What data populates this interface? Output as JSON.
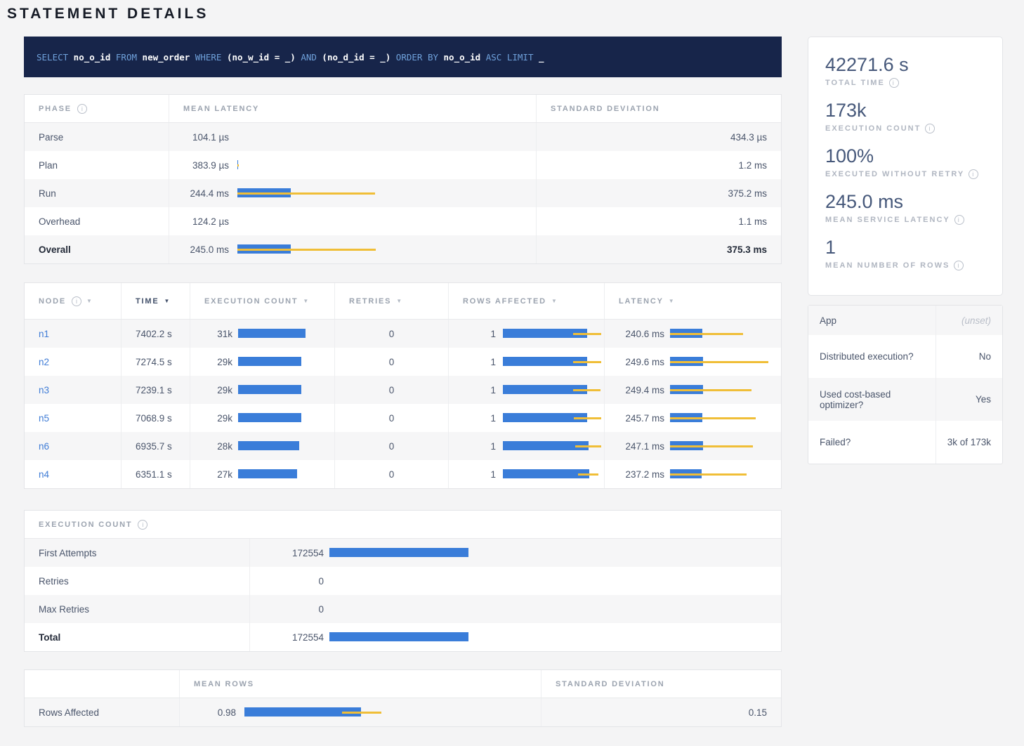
{
  "page": {
    "title": "STATEMENT DETAILS"
  },
  "colors": {
    "bar_blue": "#3a7dd9",
    "bar_yellow": "#f0be37",
    "link_blue": "#3f7cd6",
    "sql_bg": "#17254a",
    "sql_keyword": "#6fa1db"
  },
  "sql": {
    "tokens": [
      {
        "text": "SELECT",
        "kw": true
      },
      {
        "text": "no_o_id",
        "kw": false
      },
      {
        "text": "FROM",
        "kw": true
      },
      {
        "text": "new_order",
        "kw": false
      },
      {
        "text": "WHERE",
        "kw": true
      },
      {
        "text": "(no_w_id = _)",
        "kw": false
      },
      {
        "text": "AND",
        "kw": true
      },
      {
        "text": "(no_d_id = _)",
        "kw": false
      },
      {
        "text": "ORDER BY",
        "kw": true
      },
      {
        "text": "no_o_id",
        "kw": false
      },
      {
        "text": "ASC LIMIT",
        "kw": true
      },
      {
        "text": "_",
        "kw": false
      }
    ]
  },
  "phase_table": {
    "headers": {
      "phase": "PHASE",
      "mean": "MEAN LATENCY",
      "stddev": "STANDARD DEVIATION"
    },
    "rows": [
      {
        "phase": "Parse",
        "mean": "104.1 µs",
        "stddev": "434.3 µs",
        "bar": null
      },
      {
        "phase": "Plan",
        "mean": "383.9 µs",
        "stddev": "1.2 ms",
        "bar": {
          "w": 0.004,
          "ws": 0,
          "we": 0.012
        }
      },
      {
        "phase": "Run",
        "mean": "244.4 ms",
        "stddev": "375.2 ms",
        "bar": {
          "w": 0.38,
          "ws": 0,
          "we": 0.98
        }
      },
      {
        "phase": "Overhead",
        "mean": "124.2 µs",
        "stddev": "1.1 ms",
        "bar": null
      },
      {
        "phase": "Overall",
        "mean": "245.0 ms",
        "stddev": "375.3 ms",
        "bar": {
          "w": 0.38,
          "ws": 0,
          "we": 0.985
        }
      }
    ]
  },
  "node_table": {
    "headers": {
      "node": "NODE",
      "time": "TIME",
      "exec": "EXECUTION COUNT",
      "retries": "RETRIES",
      "rows": "ROWS AFFECTED",
      "latency": "LATENCY"
    },
    "rows": [
      {
        "node": "n1",
        "time": "7402.2 s",
        "exec": "31k",
        "exec_bar": {
          "w": 0.96
        },
        "retries": "0",
        "rows": "1",
        "rows_bar": {
          "w": 0.828,
          "ws": 0.69,
          "we": 0.965
        },
        "latency": "240.6 ms",
        "lat_bar": {
          "w": 0.325,
          "ws": 0,
          "we": 0.74
        }
      },
      {
        "node": "n2",
        "time": "7274.5 s",
        "exec": "29k",
        "exec_bar": {
          "w": 0.9
        },
        "retries": "0",
        "rows": "1",
        "rows_bar": {
          "w": 0.828,
          "ws": 0.69,
          "we": 0.965
        },
        "latency": "249.6 ms",
        "lat_bar": {
          "w": 0.337,
          "ws": 0,
          "we": 1.0
        }
      },
      {
        "node": "n3",
        "time": "7239.1 s",
        "exec": "29k",
        "exec_bar": {
          "w": 0.9
        },
        "retries": "0",
        "rows": "1",
        "rows_bar": {
          "w": 0.828,
          "ws": 0.69,
          "we": 0.96
        },
        "latency": "249.4 ms",
        "lat_bar": {
          "w": 0.337,
          "ws": 0,
          "we": 0.83
        }
      },
      {
        "node": "n5",
        "time": "7068.9 s",
        "exec": "29k",
        "exec_bar": {
          "w": 0.9
        },
        "retries": "0",
        "rows": "1",
        "rows_bar": {
          "w": 0.828,
          "ws": 0.695,
          "we": 0.965
        },
        "latency": "245.7 ms",
        "lat_bar": {
          "w": 0.332,
          "ws": 0,
          "we": 0.87
        }
      },
      {
        "node": "n6",
        "time": "6935.7 s",
        "exec": "28k",
        "exec_bar": {
          "w": 0.87
        },
        "retries": "0",
        "rows": "1",
        "rows_bar": {
          "w": 0.838,
          "ws": 0.71,
          "we": 0.965
        },
        "latency": "247.1 ms",
        "lat_bar": {
          "w": 0.334,
          "ws": 0,
          "we": 0.84
        }
      },
      {
        "node": "n4",
        "time": "6351.1 s",
        "exec": "27k",
        "exec_bar": {
          "w": 0.84
        },
        "retries": "0",
        "rows": "1",
        "rows_bar": {
          "w": 0.848,
          "ws": 0.735,
          "we": 0.94
        },
        "latency": "237.2 ms",
        "lat_bar": {
          "w": 0.32,
          "ws": 0,
          "we": 0.78
        }
      }
    ]
  },
  "exec_table": {
    "header": "EXECUTION COUNT",
    "rows": [
      {
        "label": "First Attempts",
        "value": "172554",
        "bar": {
          "w": 0.99
        }
      },
      {
        "label": "Retries",
        "value": "0",
        "bar": null
      },
      {
        "label": "Max Retries",
        "value": "0",
        "bar": null
      },
      {
        "label": "Total",
        "value": "172554",
        "bar": {
          "w": 0.99
        }
      }
    ]
  },
  "rows_table": {
    "headers": {
      "mean": "MEAN ROWS",
      "stddev": "STANDARD DEVIATION"
    },
    "row": {
      "label": "Rows Affected",
      "mean": "0.98",
      "bar": {
        "w": 0.755,
        "ws": 0.63,
        "we": 0.885
      },
      "stddev": "0.15"
    }
  },
  "summary_stats": [
    {
      "value": "42271.6 s",
      "label": "TOTAL TIME"
    },
    {
      "value": "173k",
      "label": "EXECUTION COUNT"
    },
    {
      "value": "100%",
      "label": "EXECUTED WITHOUT RETRY"
    },
    {
      "value": "245.0 ms",
      "label": "MEAN SERVICE LATENCY"
    },
    {
      "value": "1",
      "label": "MEAN NUMBER OF ROWS"
    }
  ],
  "details_table": {
    "rows": [
      {
        "label": "App",
        "value": "(unset)",
        "muted": true
      },
      {
        "label": "Distributed execution?",
        "value": "No",
        "muted": false
      },
      {
        "label": "Used cost-based optimizer?",
        "value": "Yes",
        "muted": false
      },
      {
        "label": "Failed?",
        "value": "3k of 173k",
        "muted": false
      }
    ]
  }
}
